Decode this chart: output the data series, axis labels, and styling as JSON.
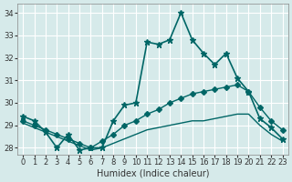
{
  "title": "",
  "xlabel": "Humidex (Indice chaleur)",
  "ylabel": "",
  "bg_color": "#d6eaea",
  "grid_color": "#ffffff",
  "line_color": "#006666",
  "xlim": [
    -0.5,
    23.5
  ],
  "ylim": [
    27.7,
    34.4
  ],
  "yticks": [
    28,
    29,
    30,
    31,
    32,
    33,
    34
  ],
  "xticks": [
    0,
    1,
    2,
    3,
    4,
    5,
    6,
    7,
    8,
    9,
    10,
    11,
    12,
    13,
    14,
    15,
    16,
    17,
    18,
    19,
    20,
    21,
    22,
    23
  ],
  "series": [
    {
      "x": [
        0,
        1,
        2,
        3,
        4,
        5,
        6,
        7,
        8,
        9,
        10,
        11,
        12,
        13,
        14,
        15,
        16,
        17,
        18,
        19,
        20,
        21,
        22,
        23
      ],
      "y": [
        29.4,
        29.2,
        28.7,
        28.0,
        28.6,
        27.9,
        28.0,
        28.0,
        29.2,
        29.9,
        30.0,
        32.7,
        32.6,
        32.8,
        34.0,
        32.8,
        32.2,
        31.7,
        32.2,
        31.1,
        30.5,
        29.3,
        28.9,
        28.4
      ],
      "marker": "*",
      "markersize": 5,
      "linewidth": 1.2
    },
    {
      "x": [
        0,
        1,
        2,
        3,
        4,
        5,
        6,
        7,
        8,
        9,
        10,
        11,
        12,
        13,
        14,
        15,
        16,
        17,
        18,
        19,
        20,
        21,
        22,
        23
      ],
      "y": [
        29.2,
        29.0,
        28.8,
        28.6,
        28.4,
        28.2,
        28.0,
        28.3,
        28.6,
        29.0,
        29.2,
        29.5,
        29.7,
        30.0,
        30.2,
        30.4,
        30.5,
        30.6,
        30.7,
        30.8,
        30.5,
        29.8,
        29.2,
        28.8
      ],
      "marker": "D",
      "markersize": 3,
      "linewidth": 1.0
    },
    {
      "x": [
        0,
        1,
        2,
        3,
        4,
        5,
        6,
        7,
        8,
        9,
        10,
        11,
        12,
        13,
        14,
        15,
        16,
        17,
        18,
        19,
        20,
        21,
        22,
        23
      ],
      "y": [
        29.1,
        28.9,
        28.7,
        28.5,
        28.3,
        28.1,
        27.9,
        28.0,
        28.2,
        28.4,
        28.6,
        28.8,
        28.9,
        29.0,
        29.1,
        29.2,
        29.2,
        29.3,
        29.4,
        29.5,
        29.5,
        29.0,
        28.6,
        28.3
      ],
      "marker": null,
      "markersize": 0,
      "linewidth": 1.0
    }
  ]
}
